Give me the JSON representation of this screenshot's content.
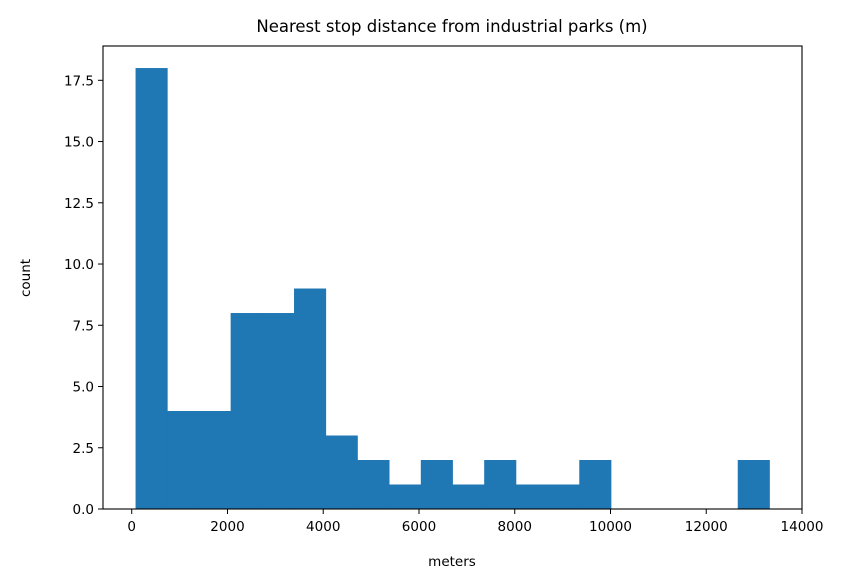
{
  "chart_data": {
    "type": "bar",
    "subtype": "histogram",
    "title": "Nearest stop distance from industrial parks (m)",
    "xlabel": "meters",
    "ylabel": "count",
    "xlim": [
      -600,
      14000
    ],
    "ylim": [
      0,
      18.9
    ],
    "xticks": [
      0,
      2000,
      4000,
      6000,
      8000,
      10000,
      12000,
      14000
    ],
    "xtick_labels": [
      "0",
      "2000",
      "4000",
      "6000",
      "8000",
      "10000",
      "12000",
      "14000"
    ],
    "yticks": [
      0,
      2.5,
      5,
      7.5,
      10,
      12.5,
      15,
      17.5
    ],
    "ytick_labels": [
      "0.0",
      "2.5",
      "5.0",
      "7.5",
      "10.0",
      "12.5",
      "15.0",
      "17.5"
    ],
    "grid": false,
    "color": "#1f77b4",
    "bin_edges": [
      80,
      742,
      1404,
      2066,
      2728,
      3390,
      4052,
      4714,
      5376,
      6038,
      6700,
      7362,
      8024,
      8686,
      9348,
      10010,
      10672,
      11334,
      11996,
      12658,
      13320
    ],
    "values": [
      18,
      4,
      4,
      8,
      8,
      9,
      3,
      2,
      1,
      2,
      1,
      2,
      1,
      1,
      2,
      0,
      0,
      0,
      0,
      2
    ]
  }
}
